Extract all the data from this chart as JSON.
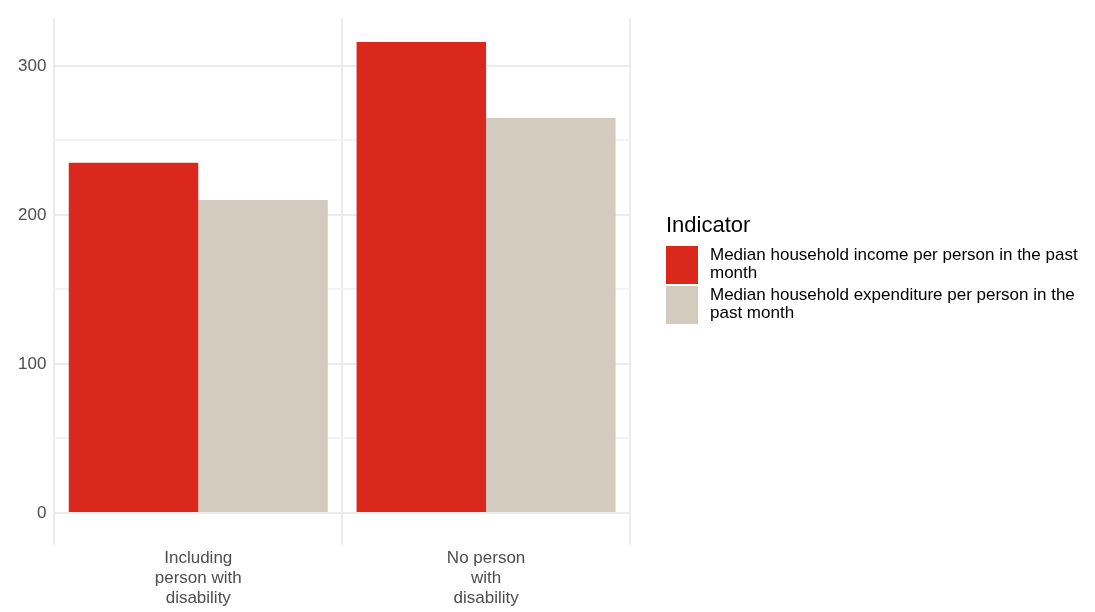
{
  "chart_data": {
    "type": "bar",
    "categories": [
      "Including person with disability",
      "No person with disability"
    ],
    "series": [
      {
        "name": "Median household income per person in the past month",
        "color": "#da291c",
        "values": [
          235,
          316
        ]
      },
      {
        "name": "Median household expenditure per person in the past month",
        "color": "#d3cbbd",
        "values": [
          210,
          265
        ]
      }
    ],
    "legend_title": "Indicator",
    "legend": "right",
    "grid": true,
    "ylim": [
      -16,
      332
    ],
    "yticks": [
      0,
      {
        "value": 50,
        "label": null
      },
      100,
      {
        "value": 150,
        "label": null
      },
      200,
      {
        "value": 250,
        "label": null
      },
      300
    ]
  }
}
